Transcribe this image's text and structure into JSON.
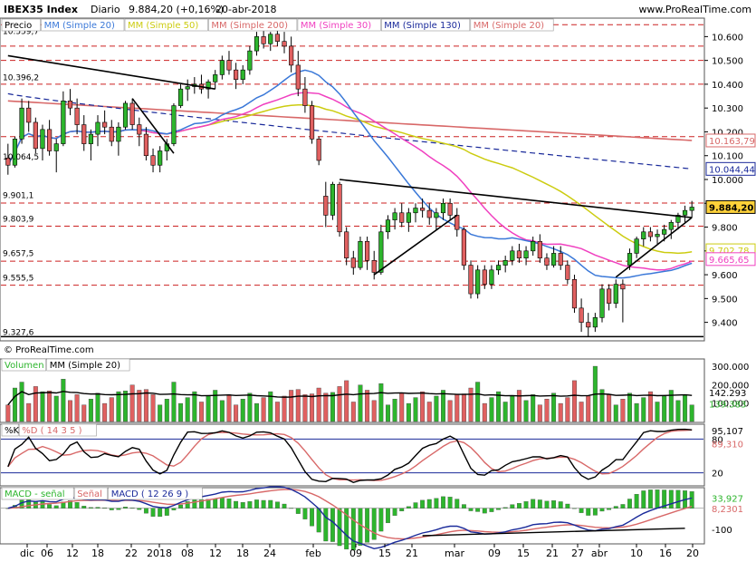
{
  "header": {
    "symbol": "IBEX35 Index",
    "period": "Diario",
    "price_change": "9.884,20 (+0,16%)",
    "date": "20-abr-2018",
    "website": "www.ProRealTime.com"
  },
  "watermark": "© ProRealTime.com",
  "colors": {
    "up": "#2db52d",
    "down": "#e06060",
    "ma20": "#3a78d8",
    "ma50": "#cccc10",
    "ma200": "#d86868",
    "ma30": "#f040c0",
    "ma130": "#1a2a9a",
    "trend": "#000000",
    "grid_red": "#cc2222"
  },
  "legends": {
    "price": [
      {
        "text": "Precio",
        "color": "#000000"
      },
      {
        "text": "MM (Simple 20)",
        "color": "#3a78d8"
      },
      {
        "text": "MM (Simple 50)",
        "color": "#cccc10"
      },
      {
        "text": "MM (Simple 200)",
        "color": "#d86868"
      },
      {
        "text": "MM (Simple 30)",
        "color": "#f040c0"
      },
      {
        "text": "MM (Simple 130)",
        "color": "#1a2a9a"
      },
      {
        "text": "MM (Simple 20)",
        "color": "#d86868"
      }
    ],
    "volume": [
      {
        "text": "Volumen",
        "color": "#2db52d"
      },
      {
        "text": "MM (Simple 20)",
        "color": "#000000"
      }
    ],
    "stoch": [
      {
        "text": "%K",
        "color": "#000000"
      },
      {
        "text": "%D ( 14 3 5 )",
        "color": "#d86868"
      }
    ],
    "macd": [
      {
        "text": "MACD - señal",
        "color": "#2db52d"
      },
      {
        "text": "Señal",
        "color": "#d86868"
      },
      {
        "text": "MACD ( 12 26 9 )",
        "color": "#1a2a9a"
      }
    ]
  },
  "price_panel": {
    "axis_ticks": [
      "10.600",
      "10.500",
      "10.400",
      "10.300",
      "10.200",
      "10.100",
      "10.000",
      "9.900",
      "9.800",
      "9.700",
      "9.600",
      "9.500",
      "9.400"
    ],
    "level_labels": [
      "10.559,7",
      "10.396,2",
      "10.064,5",
      "9.901,1",
      "9.803,9",
      "9.657,5",
      "9.555,5",
      "9.327,6"
    ],
    "badges": [
      {
        "text": "10.163,79",
        "color": "#d86868"
      },
      {
        "text": "10.044,44",
        "color": "#1a2a9a"
      },
      {
        "text": "9.884,20",
        "color": "#000000"
      },
      {
        "text": "9.702,78",
        "color": "#cccc10"
      },
      {
        "text": "9.665,65",
        "color": "#f040c0"
      }
    ]
  },
  "volume_panel": {
    "axis_ticks": [
      "300.000",
      "200.000",
      "100.000"
    ],
    "badges": [
      {
        "text": "142.293",
        "color": "#000000"
      },
      {
        "text": "139.383",
        "color": "#2db52d"
      }
    ]
  },
  "stoch_panel": {
    "axis_ticks": [
      "95,107",
      "80",
      "89,310",
      "20"
    ],
    "badge_colors": [
      "#000000",
      "#000000",
      "#d86868",
      "#000000"
    ]
  },
  "macd_panel": {
    "axis_ticks": [
      "33,927",
      "8,2301",
      "-100"
    ],
    "badge_colors": [
      "#2db52d",
      "#d86868",
      "#000000"
    ]
  },
  "x_axis": {
    "labels": [
      "dic",
      "06",
      "12",
      "18",
      "22",
      "2018",
      "08",
      "12",
      "18",
      "24",
      "feb",
      "09",
      "15",
      "21",
      "mar",
      "09",
      "15",
      "21",
      "27",
      "abr",
      "10",
      "16",
      "20"
    ]
  },
  "chart_data": {
    "type": "candlestick",
    "title": "IBEX35 Index",
    "dates": [
      "Dec 1 2017",
      "…",
      "Apr 20 2018"
    ],
    "ohlc": [
      [
        10090,
        10150,
        10020,
        10060
      ],
      [
        10060,
        10180,
        10050,
        10170
      ],
      [
        10170,
        10340,
        10150,
        10300
      ],
      [
        10300,
        10330,
        10200,
        10240
      ],
      [
        10240,
        10260,
        10110,
        10130
      ],
      [
        10130,
        10230,
        10080,
        10210
      ],
      [
        10210,
        10250,
        10100,
        10120
      ],
      [
        10120,
        10170,
        10030,
        10150
      ],
      [
        10150,
        10370,
        10140,
        10330
      ],
      [
        10330,
        10380,
        10270,
        10300
      ],
      [
        10300,
        10340,
        10190,
        10230
      ],
      [
        10230,
        10270,
        10120,
        10150
      ],
      [
        10150,
        10210,
        10080,
        10190
      ],
      [
        10190,
        10270,
        10140,
        10240
      ],
      [
        10240,
        10290,
        10190,
        10220
      ],
      [
        10220,
        10250,
        10140,
        10160
      ],
      [
        10160,
        10240,
        10100,
        10220
      ],
      [
        10220,
        10330,
        10210,
        10320
      ],
      [
        10320,
        10340,
        10210,
        10230
      ],
      [
        10230,
        10260,
        10140,
        10190
      ],
      [
        10190,
        10220,
        10080,
        10100
      ],
      [
        10100,
        10130,
        10030,
        10060
      ],
      [
        10060,
        10140,
        10030,
        10120
      ],
      [
        10120,
        10170,
        10080,
        10150
      ],
      [
        10150,
        10320,
        10140,
        10310
      ],
      [
        10310,
        10400,
        10300,
        10380
      ],
      [
        10380,
        10420,
        10330,
        10390
      ],
      [
        10390,
        10430,
        10360,
        10400
      ],
      [
        10400,
        10440,
        10360,
        10380
      ],
      [
        10380,
        10420,
        10340,
        10410
      ],
      [
        10410,
        10460,
        10380,
        10440
      ],
      [
        10440,
        10520,
        10420,
        10500
      ],
      [
        10500,
        10540,
        10440,
        10460
      ],
      [
        10460,
        10490,
        10380,
        10420
      ],
      [
        10420,
        10480,
        10400,
        10460
      ],
      [
        10460,
        10560,
        10440,
        10540
      ],
      [
        10540,
        10620,
        10520,
        10600
      ],
      [
        10600,
        10640,
        10550,
        10570
      ],
      [
        10570,
        10620,
        10540,
        10610
      ],
      [
        10610,
        10650,
        10560,
        10580
      ],
      [
        10580,
        10620,
        10530,
        10560
      ],
      [
        10560,
        10600,
        10450,
        10480
      ],
      [
        10480,
        10540,
        10350,
        10380
      ],
      [
        10380,
        10430,
        10280,
        10310
      ],
      [
        10310,
        10330,
        10150,
        10170
      ],
      [
        10170,
        10180,
        10060,
        10080
      ],
      [
        9930,
        9990,
        9800,
        9850
      ],
      [
        9850,
        9990,
        9830,
        9980
      ],
      [
        9980,
        9990,
        9760,
        9780
      ],
      [
        9780,
        9800,
        9640,
        9670
      ],
      [
        9670,
        9700,
        9600,
        9630
      ],
      [
        9630,
        9760,
        9620,
        9740
      ],
      [
        9740,
        9760,
        9620,
        9660
      ],
      [
        9660,
        9700,
        9580,
        9610
      ],
      [
        9610,
        9810,
        9600,
        9780
      ],
      [
        9780,
        9850,
        9750,
        9830
      ],
      [
        9830,
        9880,
        9790,
        9860
      ],
      [
        9860,
        9900,
        9800,
        9820
      ],
      [
        9820,
        9880,
        9780,
        9860
      ],
      [
        9860,
        9900,
        9820,
        9880
      ],
      [
        9880,
        9920,
        9840,
        9870
      ],
      [
        9870,
        9900,
        9810,
        9840
      ],
      [
        9840,
        9880,
        9790,
        9860
      ],
      [
        9860,
        9920,
        9830,
        9900
      ],
      [
        9900,
        9920,
        9830,
        9850
      ],
      [
        9850,
        9880,
        9760,
        9790
      ],
      [
        9790,
        9800,
        9620,
        9640
      ],
      [
        9640,
        9660,
        9500,
        9520
      ],
      [
        9520,
        9640,
        9500,
        9620
      ],
      [
        9620,
        9640,
        9540,
        9560
      ],
      [
        9560,
        9640,
        9540,
        9620
      ],
      [
        9620,
        9660,
        9600,
        9640
      ],
      [
        9640,
        9680,
        9610,
        9660
      ],
      [
        9660,
        9720,
        9640,
        9700
      ],
      [
        9700,
        9730,
        9650,
        9670
      ],
      [
        9670,
        9720,
        9640,
        9700
      ],
      [
        9700,
        9760,
        9680,
        9740
      ],
      [
        9740,
        9770,
        9650,
        9670
      ],
      [
        9670,
        9690,
        9620,
        9640
      ],
      [
        9640,
        9720,
        9630,
        9690
      ],
      [
        9690,
        9720,
        9620,
        9640
      ],
      [
        9640,
        9660,
        9560,
        9580
      ],
      [
        9580,
        9600,
        9440,
        9460
      ],
      [
        9460,
        9500,
        9360,
        9400
      ],
      [
        9400,
        9440,
        9340,
        9380
      ],
      [
        9380,
        9440,
        9360,
        9420
      ],
      [
        9420,
        9560,
        9400,
        9540
      ],
      [
        9540,
        9560,
        9450,
        9480
      ],
      [
        9480,
        9580,
        9460,
        9560
      ],
      [
        9560,
        9580,
        9400,
        9540
      ],
      [
        9640,
        9710,
        9620,
        9690
      ],
      [
        9690,
        9760,
        9670,
        9750
      ],
      [
        9750,
        9800,
        9720,
        9780
      ],
      [
        9780,
        9800,
        9740,
        9760
      ],
      [
        9760,
        9790,
        9730,
        9770
      ],
      [
        9770,
        9810,
        9740,
        9790
      ],
      [
        9790,
        9830,
        9750,
        9820
      ],
      [
        9820,
        9860,
        9790,
        9850
      ],
      [
        9850,
        9890,
        9820,
        9870
      ],
      [
        9870,
        9910,
        9840,
        9884
      ]
    ],
    "ma_last": {
      "MM200": 10163.79,
      "MM130": 10044.44,
      "MM50": 9702.78,
      "MM30": 9665.65
    },
    "last_close": 9884.2,
    "ylim": [
      9330,
      10670
    ]
  }
}
